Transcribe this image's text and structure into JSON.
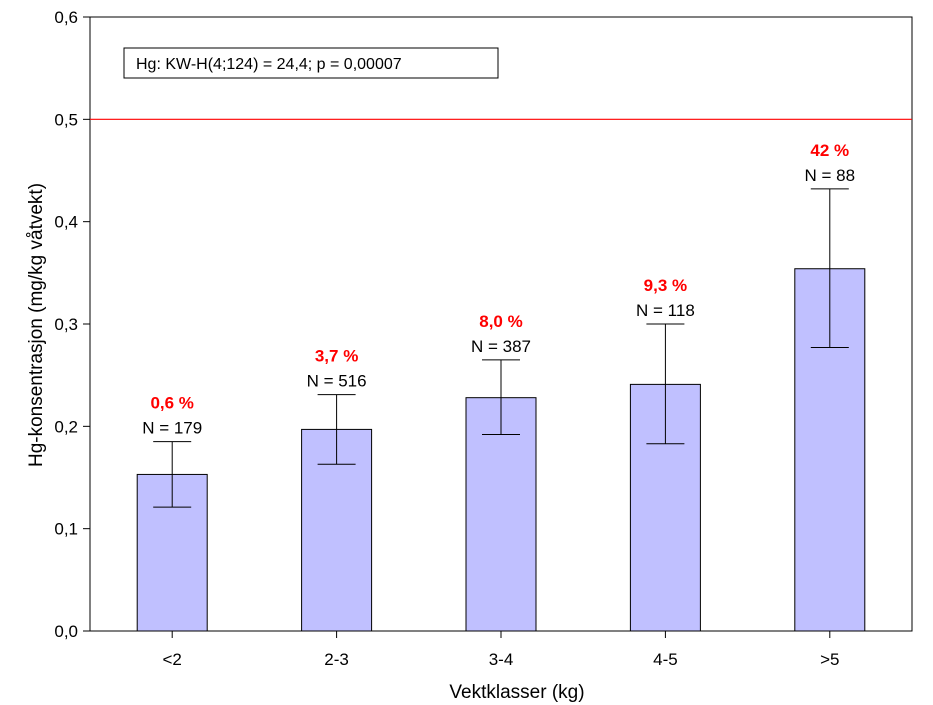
{
  "chart_data": {
    "type": "bar",
    "xlabel": "Vektklasser (kg)",
    "ylabel": "Hg-konsentrasjon (mg/kg våtvekt)",
    "ylim": [
      0.0,
      0.6
    ],
    "yticks": [
      "0,0",
      "0,1",
      "0,2",
      "0,3",
      "0,4",
      "0,5",
      "0,6"
    ],
    "ytick_values": [
      0.0,
      0.1,
      0.2,
      0.3,
      0.4,
      0.5,
      0.6
    ],
    "grid": false,
    "categories": [
      "<2",
      "2-3",
      "3-4",
      "4-5",
      ">5"
    ],
    "values": [
      0.153,
      0.197,
      0.228,
      0.241,
      0.354
    ],
    "error_low": [
      0.121,
      0.163,
      0.192,
      0.183,
      0.277
    ],
    "error_high": [
      0.185,
      0.231,
      0.265,
      0.3,
      0.432
    ],
    "n_labels": [
      "N = 179",
      "N = 516",
      "N = 387",
      "N = 118",
      "N = 88"
    ],
    "pct_labels": [
      "0,6 %",
      "3,7 %",
      "8,0 %",
      "9,3 %",
      "42 %"
    ],
    "reference_line": 0.5,
    "stats_box": "Hg:  KW-H(4;124) = 24,4; p = 0,00007",
    "colors": {
      "bar_fill": "#c0c0ff",
      "bar_stroke": "#000000",
      "reference_line": "#ff0000",
      "pct_text": "#ff0000"
    }
  }
}
